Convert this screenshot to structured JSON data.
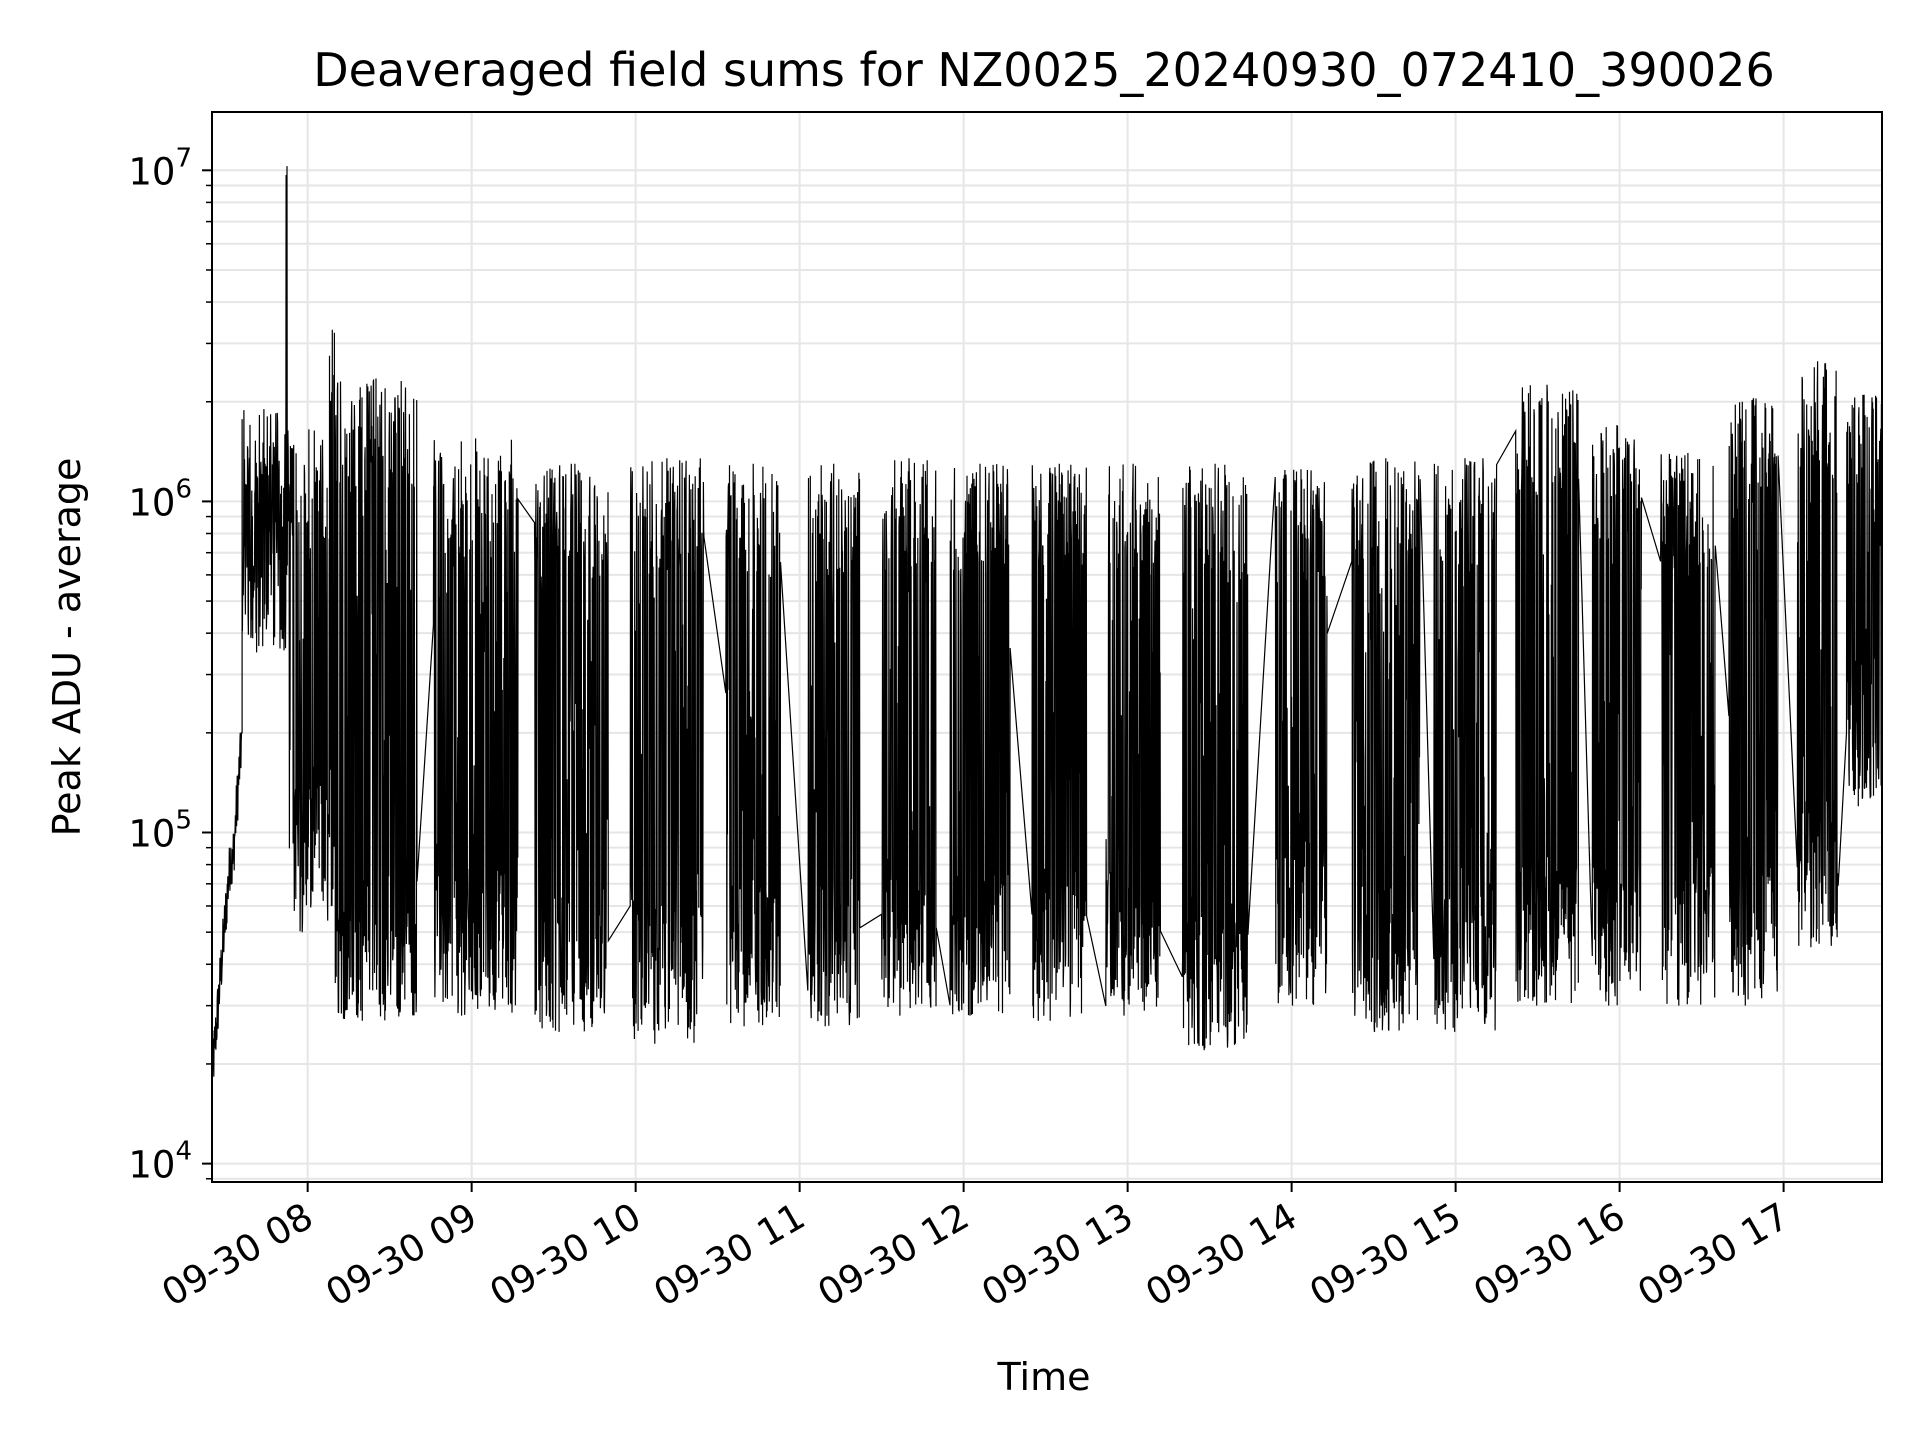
{
  "chart_data": {
    "type": "line",
    "title": "Deaveraged field sums for NZ0025_20240930_072410_390026",
    "xlabel": "Time",
    "ylabel": "Peak ADU - average",
    "yscale": "log",
    "ylim": [
      8800,
      15000000
    ],
    "xlim": [
      "2024-09-30 07:25",
      "2024-09-30 17:36"
    ],
    "x_ticks": [
      "09-30 08",
      "09-30 09",
      "09-30 10",
      "09-30 11",
      "09-30 12",
      "09-30 13",
      "09-30 14",
      "09-30 15",
      "09-30 16",
      "09-30 17"
    ],
    "y_ticks": [
      {
        "value": 10000,
        "base": "10",
        "exp": "4"
      },
      {
        "value": 100000,
        "base": "10",
        "exp": "5"
      },
      {
        "value": 1000000,
        "base": "10",
        "exp": "6"
      },
      {
        "value": 10000000,
        "base": "10",
        "exp": "7"
      }
    ],
    "grid": true,
    "legend": "none",
    "line_color": "#000000",
    "series": [
      {
        "segments": [
          {
            "start": "2024-09-30 07:25",
            "end": "2024-09-30 07:32",
            "low": 18000,
            "high": 90000,
            "ramp": true
          },
          {
            "start": "2024-09-30 07:32",
            "end": "2024-09-30 07:36",
            "low": 70000,
            "high": 200000,
            "ramp": true
          },
          {
            "start": "2024-09-30 07:36",
            "end": "2024-09-30 07:52",
            "low": 350000,
            "high": 1900000
          },
          {
            "start": "2024-09-30 07:52",
            "end": "2024-09-30 07:53",
            "low": 600000,
            "high": 10300000
          },
          {
            "start": "2024-09-30 07:53",
            "end": "2024-09-30 08:08",
            "low": 50000,
            "high": 1650000
          },
          {
            "start": "2024-09-30 08:08",
            "end": "2024-09-30 08:10",
            "low": 60000,
            "high": 3300000
          },
          {
            "start": "2024-09-30 08:10",
            "end": "2024-09-30 08:40",
            "low": 27000,
            "high": 2350000
          },
          {
            "start": "2024-09-30 08:46",
            "end": "2024-09-30 09:17",
            "low": 28000,
            "high": 1550000
          },
          {
            "start": "2024-09-30 09:23",
            "end": "2024-09-30 09:50",
            "low": 25000,
            "high": 1300000
          },
          {
            "start": "2024-09-30 09:58",
            "end": "2024-09-30 10:25",
            "low": 23000,
            "high": 1350000
          },
          {
            "start": "2024-09-30 10:33",
            "end": "2024-09-30 10:53",
            "low": 26000,
            "high": 1300000
          },
          {
            "start": "2024-09-30 11:03",
            "end": "2024-09-30 11:22",
            "low": 26000,
            "high": 1300000
          },
          {
            "start": "2024-09-30 11:30",
            "end": "2024-09-30 11:50",
            "low": 28000,
            "high": 1350000
          },
          {
            "start": "2024-09-30 11:55",
            "end": "2024-09-30 12:17",
            "low": 28000,
            "high": 1300000
          },
          {
            "start": "2024-09-30 12:25",
            "end": "2024-09-30 12:45",
            "low": 27000,
            "high": 1300000
          },
          {
            "start": "2024-09-30 12:52",
            "end": "2024-09-30 13:12",
            "low": 28000,
            "high": 1300000
          },
          {
            "start": "2024-09-30 13:20",
            "end": "2024-09-30 13:44",
            "low": 22000,
            "high": 1300000
          },
          {
            "start": "2024-09-30 13:54",
            "end": "2024-09-30 14:13",
            "low": 30000,
            "high": 1250000
          },
          {
            "start": "2024-09-30 14:22",
            "end": "2024-09-30 14:47",
            "low": 25000,
            "high": 1350000
          },
          {
            "start": "2024-09-30 14:52",
            "end": "2024-09-30 15:15",
            "low": 25000,
            "high": 1350000
          },
          {
            "start": "2024-09-30 15:22",
            "end": "2024-09-30 15:45",
            "low": 30000,
            "high": 2250000
          },
          {
            "start": "2024-09-30 15:50",
            "end": "2024-09-30 16:08",
            "low": 30000,
            "high": 1700000
          },
          {
            "start": "2024-09-30 16:15",
            "end": "2024-09-30 16:35",
            "low": 30000,
            "high": 1400000
          },
          {
            "start": "2024-09-30 16:40",
            "end": "2024-09-30 16:58",
            "low": 30000,
            "high": 2050000
          },
          {
            "start": "2024-09-30 17:05",
            "end": "2024-09-30 17:20",
            "low": 45000,
            "high": 2650000
          },
          {
            "start": "2024-09-30 17:23",
            "end": "2024-09-30 17:36",
            "low": 120000,
            "high": 2100000
          }
        ]
      }
    ]
  }
}
